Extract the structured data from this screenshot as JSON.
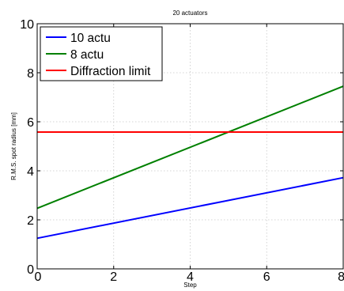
{
  "chart_data": {
    "type": "line",
    "title": "20 actuators",
    "xlabel": "Step",
    "ylabel": "R.M.S. spot radius [mm]",
    "xlim": [
      0,
      8
    ],
    "ylim": [
      0,
      10
    ],
    "x_ticks": [
      "0",
      "2",
      "4",
      "6",
      "8"
    ],
    "y_ticks": [
      "0",
      "2",
      "4",
      "6",
      "8",
      "10"
    ],
    "grid": true,
    "legend_position": "top-left",
    "series": [
      {
        "name": "10 actu",
        "color": "#0000ff",
        "x": [
          0,
          8
        ],
        "y": [
          1.25,
          3.72
        ]
      },
      {
        "name": "8 actu",
        "color": "#008000",
        "x": [
          0,
          8
        ],
        "y": [
          2.47,
          7.45
        ]
      },
      {
        "name": "Diffraction limit",
        "color": "#ff0000",
        "x": [
          0,
          8
        ],
        "y": [
          5.58,
          5.58
        ]
      }
    ]
  }
}
